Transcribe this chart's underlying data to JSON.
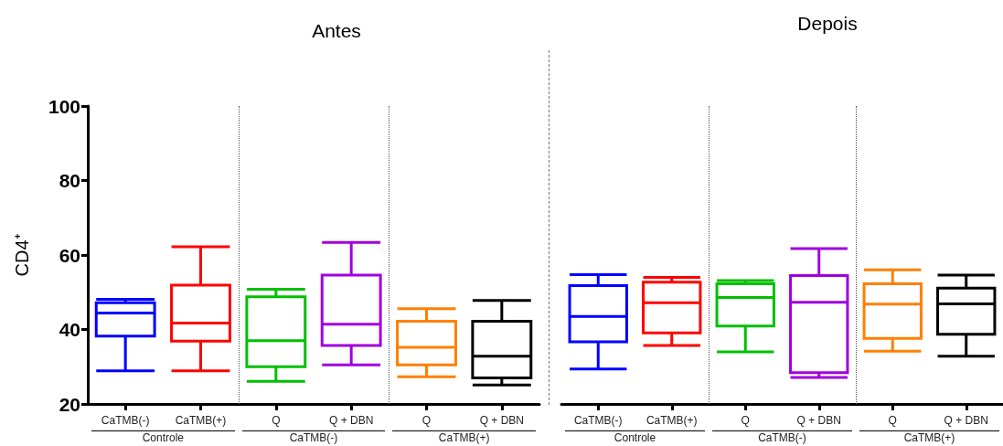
{
  "chart_data": [
    {
      "type": "box",
      "title": "Antes",
      "ylabel": "CD4⁺",
      "categories": [
        "CaTMB(-)",
        "CaTMB(+)",
        "Q",
        "Q + DBN",
        "Q",
        "Q + DBN"
      ],
      "boxes": [
        {
          "low": 28.9,
          "q1": 38.2,
          "median": 44.4,
          "q3": 47.2,
          "high": 48.1
        },
        {
          "low": 28.9,
          "q1": 36.9,
          "median": 41.7,
          "q3": 51.9,
          "high": 62.2
        },
        {
          "low": 26.1,
          "q1": 30.0,
          "median": 37.0,
          "q3": 48.8,
          "high": 50.8
        },
        {
          "low": 30.5,
          "q1": 35.7,
          "median": 41.4,
          "q3": 54.6,
          "high": 63.4
        },
        {
          "low": 27.3,
          "q1": 30.5,
          "median": 35.2,
          "q3": 42.2,
          "high": 45.6
        },
        {
          "low": 25.1,
          "q1": 27.0,
          "median": 32.8,
          "q3": 42.2,
          "high": 47.8
        }
      ],
      "colors": [
        "#0000ff",
        "#ff0000",
        "#00c000",
        "#a000e0",
        "#ff8000",
        "#000000"
      ],
      "ylim": [
        20,
        100
      ],
      "yticks": [
        20,
        40,
        60,
        80,
        100
      ],
      "annotations": [
        "Controle",
        "CaTMB(-)",
        "CaTMB(+)"
      ]
    },
    {
      "type": "box",
      "title": "Depois",
      "categories": [
        "CaTMB(-)",
        "CaTMB(+)",
        "Q",
        "Q + DBN",
        "Q",
        "Q + DBN"
      ],
      "boxes": [
        {
          "low": 29.4,
          "q1": 36.7,
          "median": 43.5,
          "q3": 51.8,
          "high": 54.7
        },
        {
          "low": 35.7,
          "q1": 39.1,
          "median": 47.2,
          "q3": 52.7,
          "high": 54.0
        },
        {
          "low": 34.0,
          "q1": 40.9,
          "median": 48.6,
          "q3": 52.3,
          "high": 53.1
        },
        {
          "low": 27.1,
          "q1": 28.4,
          "median": 47.3,
          "q3": 54.5,
          "high": 61.7
        },
        {
          "low": 34.2,
          "q1": 37.6,
          "median": 46.8,
          "q3": 52.3,
          "high": 56.0
        },
        {
          "low": 32.8,
          "q1": 38.7,
          "median": 46.9,
          "q3": 51.1,
          "high": 54.6
        }
      ],
      "colors": [
        "#0000ff",
        "#ff0000",
        "#00c000",
        "#a000e0",
        "#ff8000",
        "#000000"
      ],
      "ylim": [
        20,
        100
      ],
      "yticks": [
        20,
        40,
        60,
        80,
        100
      ],
      "tick_labels": "x",
      "annotations": [
        "Controle",
        "CaTMB(-)",
        "CaTMB(+)"
      ]
    }
  ]
}
